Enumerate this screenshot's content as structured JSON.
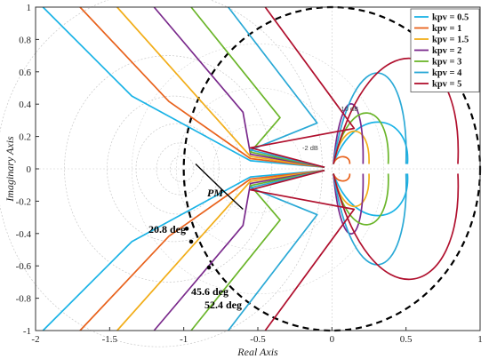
{
  "chart_data": {
    "type": "line",
    "xlabel": "Real Axis",
    "ylabel": "Imaginary Axis",
    "xlim": [
      -2,
      1
    ],
    "ylim": [
      -1,
      1
    ],
    "x_ticks": [
      "-2",
      "-1.5",
      "-1",
      "-0.5",
      "0",
      "0.5",
      "1"
    ],
    "y_ticks": [
      "1",
      "0.8",
      "0.6",
      "0.4",
      "0.2",
      "0",
      "-0.2",
      "-0.4",
      "-0.6",
      "-0.8",
      "-1"
    ],
    "legend_position": "top-right",
    "series": [
      {
        "name": "kpv = 0.5",
        "color": "#1ab3e6",
        "peak_y": 0.25,
        "apex_x": 0.51
      },
      {
        "name": "kpv = 1",
        "color": "#e8621c",
        "peak_y": 0.06,
        "apex_x": 0.12
      },
      {
        "name": "kpv = 1.5",
        "color": "#f2ae1a",
        "peak_y": 0.2,
        "apex_x": 0.25
      },
      {
        "name": "kpv = 2",
        "color": "#7a2a8c",
        "peak_y": 0.35,
        "apex_x": 0.21
      },
      {
        "name": "kpv = 3",
        "color": "#6bb52a",
        "peak_y": 0.3,
        "apex_x": 0.38
      },
      {
        "name": "kpv = 4",
        "color": "#2aa9d6",
        "peak_y": 0.52,
        "apex_x": 0.5
      },
      {
        "name": "kpv = 5",
        "color": "#b0102e",
        "peak_y": 0.6,
        "apex_x": 0.85
      }
    ],
    "dashed_circle": {
      "center": [
        0,
        0
      ],
      "radius": 1
    },
    "annotations": {
      "pm": "PM",
      "pm_values": [
        "20.8 deg",
        "45.6 deg",
        "52.4 deg"
      ],
      "db_labels": [
        "-10 dB",
        "-2 dB"
      ]
    }
  }
}
